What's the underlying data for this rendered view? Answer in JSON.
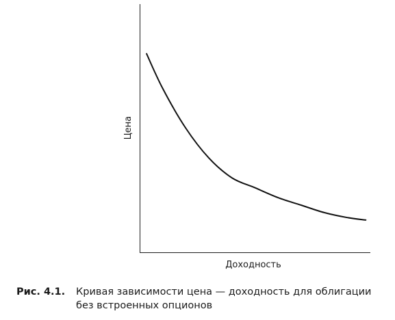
{
  "chart_data": {
    "type": "line",
    "xlabel": "Доходность",
    "ylabel": "Цена",
    "grid": false,
    "legend": "none",
    "axis_ticks": false,
    "series": [
      {
        "values": [
          {
            "x": 0.03,
            "y": 0.8
          },
          {
            "x": 0.1,
            "y": 0.66
          },
          {
            "x": 0.2,
            "y": 0.5
          },
          {
            "x": 0.3,
            "y": 0.38
          },
          {
            "x": 0.4,
            "y": 0.3
          },
          {
            "x": 0.5,
            "y": 0.26
          },
          {
            "x": 0.6,
            "y": 0.22
          },
          {
            "x": 0.7,
            "y": 0.19
          },
          {
            "x": 0.8,
            "y": 0.16
          },
          {
            "x": 0.9,
            "y": 0.14
          },
          {
            "x": 0.98,
            "y": 0.13
          }
        ]
      }
    ]
  },
  "caption": {
    "label": "Рис. 4.1.",
    "text": "Кривая зависимости цена — доходность для облигации без встроенных опционов"
  }
}
